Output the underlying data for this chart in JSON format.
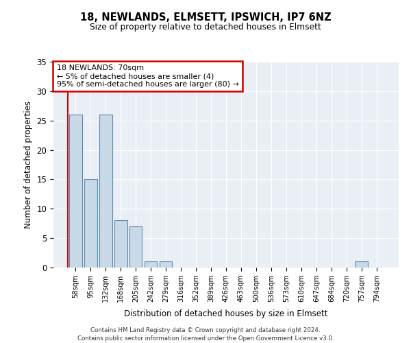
{
  "title1": "18, NEWLANDS, ELMSETT, IPSWICH, IP7 6NZ",
  "title2": "Size of property relative to detached houses in Elmsett",
  "xlabel": "Distribution of detached houses by size in Elmsett",
  "ylabel": "Number of detached properties",
  "categories": [
    "58sqm",
    "95sqm",
    "132sqm",
    "168sqm",
    "205sqm",
    "242sqm",
    "279sqm",
    "316sqm",
    "352sqm",
    "389sqm",
    "426sqm",
    "463sqm",
    "500sqm",
    "536sqm",
    "573sqm",
    "610sqm",
    "647sqm",
    "684sqm",
    "720sqm",
    "757sqm",
    "794sqm"
  ],
  "values": [
    26,
    15,
    26,
    8,
    7,
    1,
    1,
    0,
    0,
    0,
    0,
    0,
    0,
    0,
    0,
    0,
    0,
    0,
    0,
    1,
    0
  ],
  "bar_color": "#c9d9e8",
  "bar_edge_color": "#5a8ab0",
  "annotation_box_color": "#ffffff",
  "annotation_box_edge": "#cc0000",
  "annotation_lines": [
    "18 NEWLANDS: 70sqm",
    "← 5% of detached houses are smaller (4)",
    "95% of semi-detached houses are larger (80) →"
  ],
  "ylim": [
    0,
    35
  ],
  "yticks": [
    0,
    5,
    10,
    15,
    20,
    25,
    30,
    35
  ],
  "footer1": "Contains HM Land Registry data © Crown copyright and database right 2024.",
  "footer2": "Contains public sector information licensed under the Open Government Licence v3.0."
}
